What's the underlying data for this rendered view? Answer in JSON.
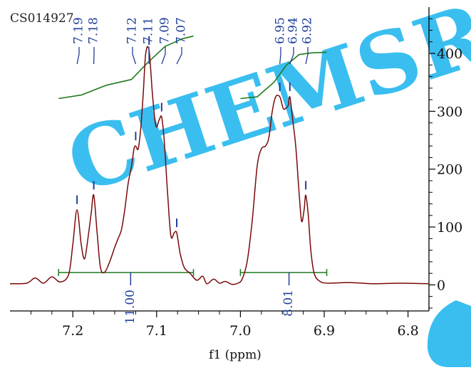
{
  "sample_id": "CS014927",
  "watermark": "CHEMSRC",
  "colors": {
    "spectrum": "#7a0a0a",
    "integral": "#1e7a1e",
    "peak_label": "#1f3f9a",
    "axis": "#000000",
    "watermark": "#25b7ee"
  },
  "chart_data": {
    "type": "line",
    "title": "",
    "xlabel": "f1  (ppm)",
    "ylabel": "",
    "x_reversed": true,
    "xlim": [
      7.275,
      6.775
    ],
    "ylim": [
      -45,
      480
    ],
    "x_ticks": [
      7.2,
      7.1,
      7.0,
      6.9,
      6.8
    ],
    "x_tick_labels": [
      "7.2",
      "7.1",
      "7.0",
      "6.9",
      "6.8"
    ],
    "y_ticks": [
      0,
      100,
      200,
      300,
      400
    ],
    "y_tick_labels": [
      "0",
      "100",
      "200",
      "300",
      "400"
    ],
    "peak_labels": [
      {
        "label": "7.19",
        "ppm": 7.195,
        "height": 130
      },
      {
        "label": "7.18",
        "ppm": 7.175,
        "height": 155
      },
      {
        "label": "7.12",
        "ppm": 7.125,
        "height": 240
      },
      {
        "label": "7.11",
        "ppm": 7.109,
        "height": 405
      },
      {
        "label": "7.09",
        "ppm": 7.094,
        "height": 290
      },
      {
        "label": "7.07",
        "ppm": 7.076,
        "height": 90
      },
      {
        "label": "6.95",
        "ppm": 6.953,
        "height": 325
      },
      {
        "label": "6.94",
        "ppm": 6.941,
        "height": 325
      },
      {
        "label": "6.92",
        "ppm": 6.922,
        "height": 155
      }
    ],
    "integrals": [
      {
        "label": "11.00",
        "from": 7.217,
        "to": 7.056,
        "center": 7.131
      },
      {
        "label": "8.01",
        "from": 7.0,
        "to": 6.897,
        "center": 6.942
      }
    ],
    "integral_curves": [
      {
        "x": [
          7.217,
          7.19,
          7.16,
          7.13,
          7.11,
          7.09,
          7.07,
          7.056
        ],
        "y": [
          322,
          328,
          345,
          355,
          385,
          412,
          425,
          430
        ]
      },
      {
        "x": [
          7.0,
          6.98,
          6.96,
          6.945,
          6.93,
          6.915,
          6.897
        ],
        "y": [
          322,
          325,
          350,
          380,
          398,
          401,
          402
        ]
      }
    ],
    "series": [
      {
        "x": [
          7.275,
          7.255,
          7.245,
          7.235,
          7.225,
          7.215,
          7.205,
          7.2,
          7.195,
          7.19,
          7.186,
          7.182,
          7.178,
          7.175,
          7.171,
          7.167,
          7.162,
          7.156,
          7.15,
          7.146,
          7.142,
          7.138,
          7.134,
          7.13,
          7.127,
          7.125,
          7.122,
          7.119,
          7.116,
          7.113,
          7.109,
          7.105,
          7.101,
          7.097,
          7.094,
          7.091,
          7.087,
          7.083,
          7.079,
          7.076,
          7.072,
          7.067,
          7.06,
          7.052,
          7.045,
          7.04,
          7.032,
          7.025,
          7.018,
          7.01,
          7.003,
          6.998,
          6.992,
          6.986,
          6.98,
          6.975,
          6.97,
          6.966,
          6.962,
          6.958,
          6.953,
          6.949,
          6.946,
          6.943,
          6.941,
          6.938,
          6.934,
          6.93,
          6.927,
          6.924,
          6.922,
          6.919,
          6.916,
          6.912,
          6.905,
          6.895,
          6.87,
          6.84,
          6.81,
          6.775
        ],
        "y": [
          2,
          3,
          12,
          3,
          14,
          5,
          18,
          70,
          130,
          70,
          45,
          80,
          125,
          155,
          90,
          30,
          22,
          40,
          65,
          80,
          95,
          130,
          175,
          205,
          235,
          240,
          235,
          270,
          330,
          400,
          405,
          330,
          275,
          285,
          290,
          250,
          160,
          85,
          90,
          90,
          55,
          30,
          20,
          8,
          15,
          2,
          10,
          3,
          6,
          1,
          3,
          10,
          40,
          110,
          205,
          235,
          240,
          255,
          300,
          325,
          325,
          305,
          305,
          310,
          325,
          290,
          240,
          160,
          110,
          130,
          155,
          120,
          60,
          20,
          6,
          3,
          4,
          2,
          3,
          2
        ]
      }
    ]
  }
}
